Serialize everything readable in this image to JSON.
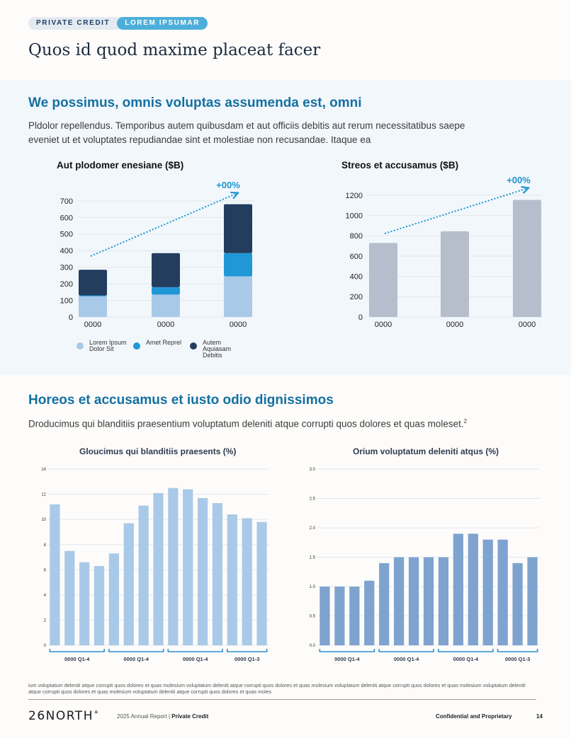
{
  "header": {
    "tag1": "PRIVATE CREDIT",
    "tag2": "LOREM IPSUMAR",
    "title": "Quos id quod maxime placeat facer"
  },
  "section1": {
    "heading": "We possimus, omnis voluptas assumenda est, omni",
    "body": "Pldolor repellendus. Temporibus autem quibusdam et aut officiis debitis aut rerum necessitatibus saepe eveniet ut et voluptates repudiandae sint et molestiae non recusandae. Itaque ea"
  },
  "section2": {
    "heading": "Horeos et accusamus et iusto odio dignissimos",
    "body": "Droducimus qui blanditiis praesentium voluptatum deleniti atque corrupti quos dolores et quas moleset.",
    "body_sup": "2"
  },
  "legend": [
    {
      "label": "Lorem Ipsum Dolor Sit",
      "color": "#a9c9e8"
    },
    {
      "label": "Amet Reprel",
      "color": "#2098d8"
    },
    {
      "label": "Autem Aquiasam Debitis",
      "color": "#233d5e"
    }
  ],
  "chart_data": [
    {
      "type": "bar",
      "stacked": true,
      "title": "Aut plodomer enesiane ($B)",
      "categories": [
        "0000",
        "0000",
        "0000"
      ],
      "series": [
        {
          "name": "Lorem Ipsum Dolor Sit",
          "color": "#a9c9e8",
          "values": [
            125,
            135,
            245
          ]
        },
        {
          "name": "Amet Reprel",
          "color": "#2098d8",
          "values": [
            5,
            45,
            140
          ]
        },
        {
          "name": "Autem Aquiasam Debitis",
          "color": "#233d5e",
          "values": [
            155,
            205,
            295
          ]
        }
      ],
      "ylim": [
        0,
        700
      ],
      "yticks": [
        0,
        100,
        200,
        300,
        400,
        500,
        600,
        700
      ],
      "annotation": "+00%",
      "grid": true
    },
    {
      "type": "bar",
      "title": "Streos et accusamus ($B)",
      "categories": [
        "0000",
        "0000",
        "0000"
      ],
      "values": [
        730,
        845,
        1155
      ],
      "color": "#b6bdcb",
      "ylim": [
        0,
        1200
      ],
      "yticks": [
        0,
        200,
        400,
        600,
        800,
        1000,
        1200
      ],
      "annotation": "+00%",
      "grid": true
    },
    {
      "type": "bar",
      "title": "Gloucimus qui blanditiis praesents (%)",
      "values": [
        11.2,
        7.5,
        6.6,
        6.3,
        7.3,
        9.7,
        11.1,
        12.1,
        12.5,
        12.4,
        11.7,
        11.3,
        10.4,
        10.1,
        9.8
      ],
      "groups": [
        {
          "label": "0000 Q1-4",
          "count": 4
        },
        {
          "label": "0000 Q1-4",
          "count": 4
        },
        {
          "label": "0000 Q1-4",
          "count": 4
        },
        {
          "label": "0000 Q1-3",
          "count": 3
        }
      ],
      "color": "#a9c9e8",
      "ylim": [
        0,
        14
      ],
      "yticks": [
        0,
        2,
        4,
        6,
        8,
        10,
        12,
        14
      ],
      "grid": true
    },
    {
      "type": "bar",
      "title": "Orium voluptatum deleniti atqus (%)",
      "values": [
        1.0,
        1.0,
        1.0,
        1.1,
        1.4,
        1.5,
        1.5,
        1.5,
        1.5,
        1.9,
        1.9,
        1.8,
        1.8,
        1.4,
        1.5
      ],
      "groups": [
        {
          "label": "0000 Q1-4",
          "count": 4
        },
        {
          "label": "0000 Q1-4",
          "count": 4
        },
        {
          "label": "0000 Q1-4",
          "count": 4
        },
        {
          "label": "0000 Q1-3",
          "count": 3
        }
      ],
      "color": "#7ea3ce",
      "ylim": [
        0,
        3.0
      ],
      "yticks": [
        "0.0",
        "0.5",
        "1.0",
        "1.5",
        "2.0",
        "2.5",
        "3.0"
      ],
      "grid": true
    }
  ],
  "footnote": "ium voluptatum deleniti atque corrupti quos dolores et quas molesium voluptatum deleniti atque corrupti quos dolores et quas molesium voluptatum deleniti atque corrupti quos dolores et quas molesium voluptatum deleniti atque corrupti quos dolores et quas molesium voluptatum deleniti atque corrupti quos dolores et quas moles",
  "footer": {
    "logo": "26NORTH",
    "logo_mark": "+",
    "report": "2025 Annual Report | ",
    "report_bold": "Private Credit",
    "confidential": "Confidential and Proprietary",
    "page": "14"
  },
  "colors": {
    "accent": "#1470a0",
    "trend": "#1c93cf",
    "grid": "#e2e7ed",
    "axis_bracket": "#2b8fd0"
  }
}
